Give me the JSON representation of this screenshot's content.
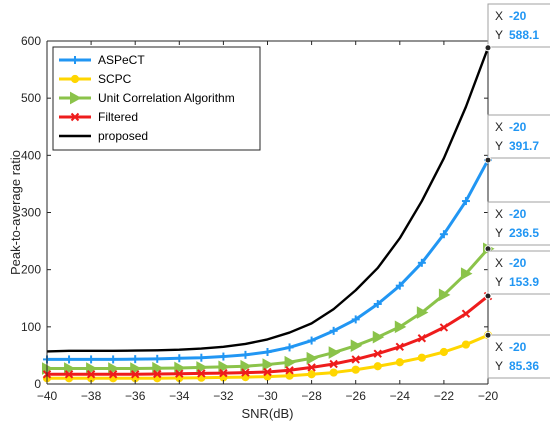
{
  "chart_data": {
    "type": "line",
    "xlabel": "SNR(dB)",
    "ylabel": "Peak-to-average ratio",
    "xlim": [
      -40,
      -20
    ],
    "ylim": [
      0,
      600
    ],
    "xticks": [
      -40,
      -38,
      -36,
      -34,
      -32,
      -30,
      -28,
      -26,
      -24,
      -22,
      -20
    ],
    "yticks": [
      0,
      100,
      200,
      300,
      400,
      500,
      600
    ],
    "grid": false,
    "legend_position": "top-left",
    "x": [
      -40,
      -39,
      -38,
      -37,
      -36,
      -35,
      -34,
      -33,
      -32,
      -31,
      -30,
      -29,
      -28,
      -27,
      -26,
      -25,
      -24,
      -23,
      -22,
      -21,
      -20
    ],
    "series": [
      {
        "name": "ASPeCT",
        "color": "#2196f3",
        "marker": "plus",
        "values": [
          43,
          43,
          43,
          43,
          43.5,
          44,
          45,
          46,
          48,
          51,
          56,
          64,
          76,
          93,
          113,
          140,
          172,
          212,
          262,
          320,
          391.7
        ]
      },
      {
        "name": "SCPC",
        "color": "#ffd600",
        "marker": "circle",
        "values": [
          10,
          10,
          10,
          10,
          10,
          10,
          10.5,
          11,
          11.5,
          12,
          13,
          14.5,
          17,
          20,
          25,
          31,
          38,
          46,
          56,
          69,
          85.36
        ]
      },
      {
        "name": "Unit Correlation Algorithm",
        "color": "#8bc34a",
        "marker": "triangle-right",
        "values": [
          27,
          27,
          27,
          27,
          27,
          27.5,
          28,
          29,
          30,
          31,
          34,
          38,
          45,
          55,
          67,
          82,
          100,
          125,
          156,
          193,
          236.5
        ]
      },
      {
        "name": "Filtered",
        "color": "#ee1c1c",
        "marker": "x",
        "values": [
          17,
          17,
          17,
          17,
          17,
          17.5,
          18,
          18.5,
          19,
          20,
          21,
          24,
          29,
          35,
          43,
          53,
          65,
          80,
          99,
          123,
          153.9
        ]
      },
      {
        "name": "proposed",
        "color": "#000000",
        "marker": "none",
        "values": [
          57,
          58,
          58,
          58,
          58.5,
          59,
          60,
          62,
          65,
          70,
          78,
          90,
          106,
          131,
          164,
          203,
          255,
          320,
          395,
          485,
          588.1
        ]
      }
    ],
    "datatips": [
      {
        "x_key": "X",
        "x_value": "-20",
        "y_key": "Y",
        "y_value": "588.1"
      },
      {
        "x_key": "X",
        "x_value": "-20",
        "y_key": "Y",
        "y_value": "391.7"
      },
      {
        "x_key": "X",
        "x_value": "-20",
        "y_key": "Y",
        "y_value": "236.5"
      },
      {
        "x_key": "X",
        "x_value": "-20",
        "y_key": "Y",
        "y_value": "153.9"
      },
      {
        "x_key": "X",
        "x_value": "-20",
        "y_key": "Y",
        "y_value": "85.36"
      }
    ]
  }
}
